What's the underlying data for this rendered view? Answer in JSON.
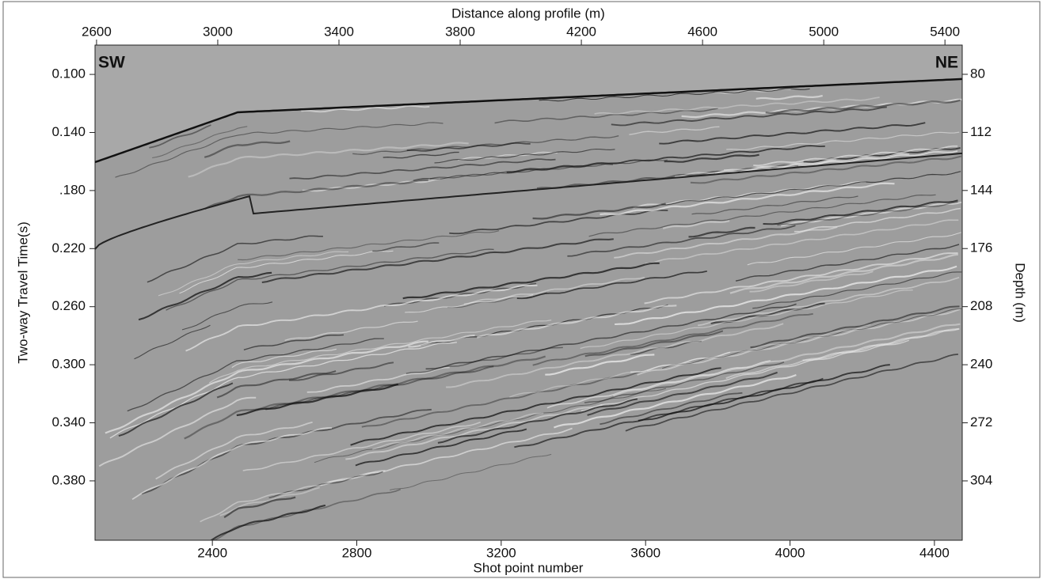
{
  "chart_data": {
    "type": "seismic-section",
    "title": "Distance along profile (m)",
    "xlabel": "Shot point number",
    "ylabel": "Two-way Travel Time(s)",
    "y2label": "Depth (m)",
    "annotations": [
      "SW",
      "NE"
    ],
    "x2lim": [
      2595,
      5457
    ],
    "x2ticks": [
      2600,
      3000,
      3400,
      3800,
      4200,
      4600,
      5000,
      5400
    ],
    "xlim": [
      2075,
      4477
    ],
    "xticks": [
      2400,
      2800,
      3200,
      3600,
      4000,
      4400
    ],
    "ylim": [
      0.0798,
      0.4209
    ],
    "y_inverted": true,
    "yticks": [
      {
        "value": 0.1,
        "label": "0.100"
      },
      {
        "value": 0.14,
        "label": "0.140"
      },
      {
        "value": 0.18,
        "label": ".180"
      },
      {
        "value": 0.22,
        "label": "0.220"
      },
      {
        "value": 0.26,
        "label": "0.260"
      },
      {
        "value": 0.3,
        "label": "0.300"
      },
      {
        "value": 0.34,
        "label": "0.340"
      },
      {
        "value": 0.38,
        "label": "0.380"
      }
    ],
    "y2lim": [
      63.9,
      336.7
    ],
    "y2ticks": [
      80,
      112,
      144,
      176,
      208,
      240,
      272,
      304
    ]
  }
}
